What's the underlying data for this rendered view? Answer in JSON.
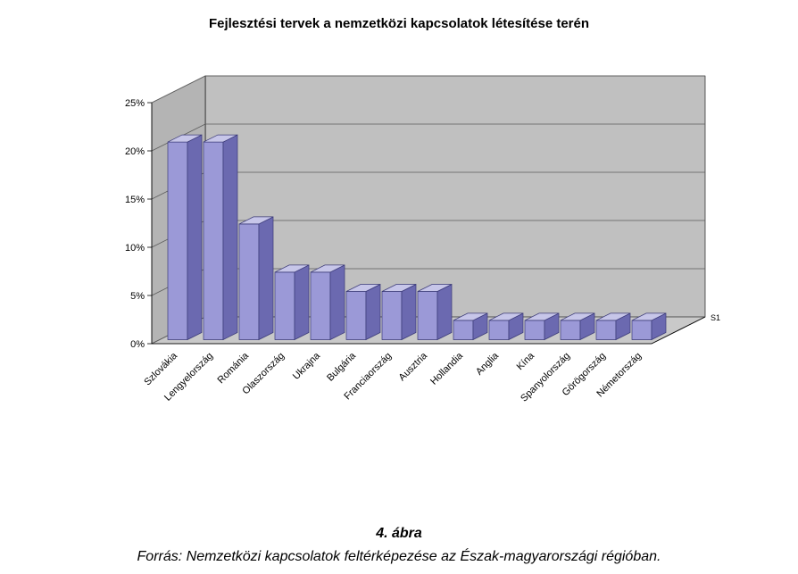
{
  "chart": {
    "type": "bar-3d",
    "title": "Fejlesztési tervek a nemzetközi kapcsolatok létesítése terén",
    "title_fontsize": 15,
    "title_fontweight": "bold",
    "series_name": "S1",
    "categories": [
      "Szlovákia",
      "Lengyelország",
      "Románia",
      "Olaszország",
      "Ukrajna",
      "Bulgária",
      "Franciaország",
      "Ausztria",
      "Hollandia",
      "Anglia",
      "Kína",
      "Spanyolország",
      "Görögország",
      "Németország"
    ],
    "values": [
      20.5,
      20.5,
      12,
      7,
      7,
      5,
      5,
      5,
      2,
      2,
      2,
      2,
      2,
      2
    ],
    "bar_fill": "#9b99d7",
    "bar_top": "#c7c6e9",
    "bar_side": "#6b69b0",
    "bar_stroke": "#3b3a78",
    "floor_fill": "#c9c9c9",
    "wall_fill": "#c0c0c0",
    "side_wall_fill": "#b4b4b4",
    "grid_color": "#5b5b5b",
    "axis_color": "#000000",
    "ylabel_suffix": "%",
    "ylim": [
      0,
      25
    ],
    "ytick_step": 5,
    "label_fontsize": 11,
    "category_label_fontsize": 11,
    "category_label_angle": -45,
    "viewbox_w": 720,
    "viewbox_h": 480,
    "origin_x": 60,
    "origin_y": 330,
    "axis_width": 560,
    "axis_height": 270,
    "depth_dx": 60,
    "depth_dy": 30,
    "bar_width_ratio": 0.55,
    "bar_depth_dx": 16,
    "bar_depth_dy": 8
  },
  "caption": {
    "figure_num": "4. ábra",
    "source": "Forrás: Nemzetközi kapcsolatok feltérképezése az Észak-magyarországi régióban."
  }
}
